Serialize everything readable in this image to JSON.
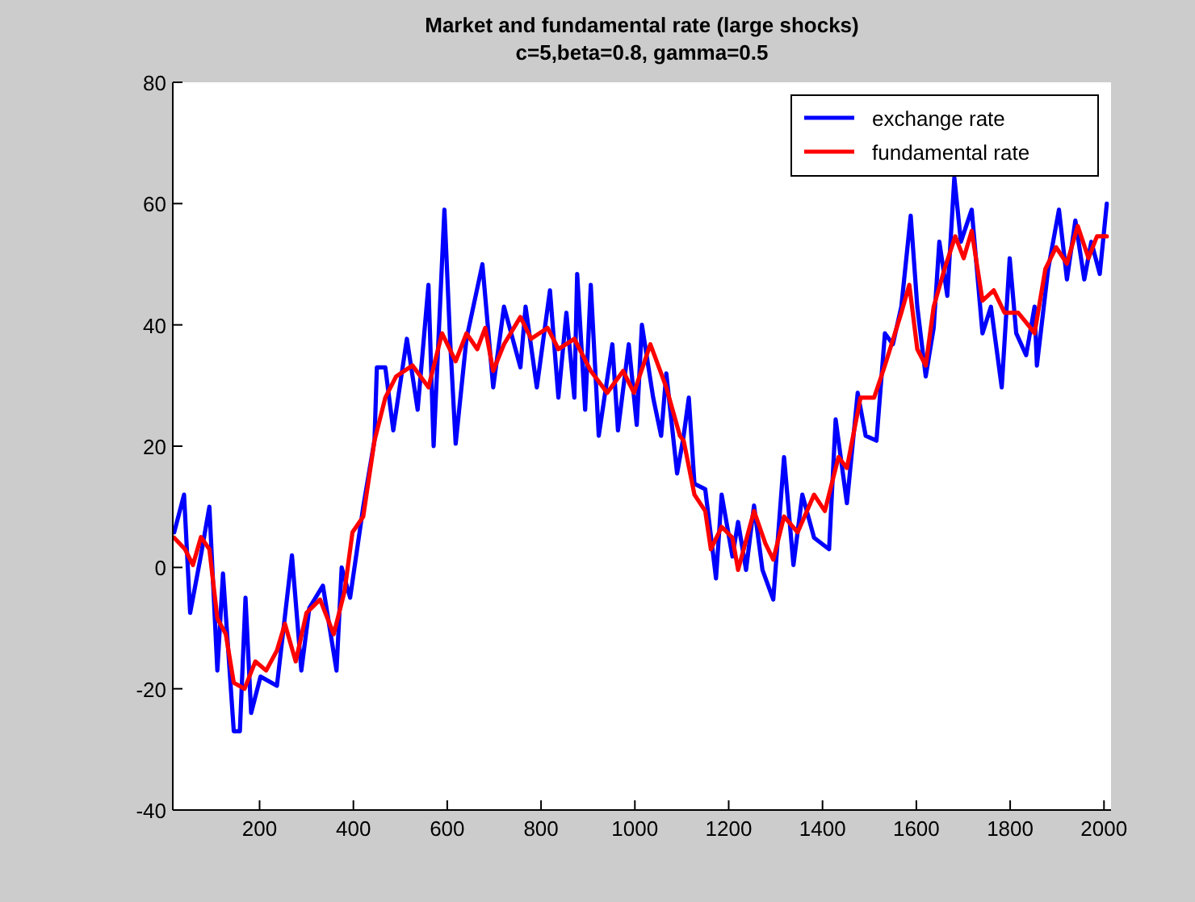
{
  "chart_data": {
    "type": "line",
    "title": "Market and fundamental rate (large shocks)",
    "subtitle": "c=5,beta=0.8, gamma=0.5",
    "xlim": [
      15,
      2015
    ],
    "ylim": [
      -40,
      80
    ],
    "xticks": [
      200,
      400,
      600,
      800,
      1000,
      1200,
      1400,
      1600,
      1800,
      2000
    ],
    "yticks": [
      -40,
      -20,
      0,
      20,
      40,
      60,
      80
    ],
    "legend": "top right",
    "grid": false,
    "series": [
      {
        "name": "exchange rate",
        "color": "#0000ff",
        "x": [
          18,
          39,
          52,
          75,
          93,
          110,
          122,
          145,
          158,
          170,
          182,
          202,
          237,
          269,
          289,
          306,
          335,
          364,
          375,
          393,
          421,
          445,
          450,
          468,
          485,
          514,
          537,
          560,
          571,
          594,
          606,
          618,
          641,
          675,
          698,
          721,
          756,
          767,
          791,
          819,
          837,
          854,
          871,
          877,
          894,
          906,
          923,
          952,
          964,
          987,
          1004,
          1015,
          1039,
          1056,
          1067,
          1090,
          1104,
          1115,
          1127,
          1150,
          1173,
          1185,
          1208,
          1220,
          1237,
          1254,
          1272,
          1295,
          1318,
          1338,
          1357,
          1382,
          1414,
          1428,
          1452,
          1475,
          1492,
          1515,
          1533,
          1550,
          1568,
          1588,
          1602,
          1620,
          1637,
          1649,
          1666,
          1681,
          1695,
          1718,
          1741,
          1759,
          1782,
          1799,
          1813,
          1834,
          1852,
          1857,
          1881,
          1904,
          1921,
          1939,
          1958,
          1973,
          1991,
          2006
        ],
        "values": [
          5.8,
          12,
          -7.5,
          2,
          10,
          -17,
          -1,
          -27,
          -27,
          -5,
          -24,
          -18,
          -19.5,
          2,
          -17,
          -6.7,
          -3,
          -17,
          0,
          -5,
          10,
          21,
          33,
          33,
          22.6,
          37.7,
          26,
          46.6,
          20,
          59,
          37.7,
          20.4,
          37.7,
          50,
          29.7,
          43,
          33,
          43,
          29.7,
          45.7,
          28,
          42,
          28,
          48.4,
          26,
          46.6,
          21.7,
          36.8,
          22.6,
          36.8,
          23.5,
          40,
          28,
          21.7,
          32,
          15.5,
          21.7,
          28,
          13.8,
          12.9,
          -1.8,
          12,
          1.8,
          7.5,
          -0.4,
          10.2,
          -0.4,
          -5.3,
          18.2,
          0.4,
          12,
          4.9,
          3,
          24.4,
          10.6,
          28.8,
          21.7,
          20.9,
          38.6,
          36.8,
          43,
          58,
          43,
          31.5,
          39.5,
          53.7,
          44.8,
          64.3,
          53.7,
          59,
          38.6,
          43,
          29.7,
          51,
          38.6,
          35,
          43,
          33.3,
          49.2,
          59,
          47.5,
          57.2,
          47.5,
          53.7,
          48.4,
          60
        ]
      },
      {
        "name": "fundamental rate",
        "color": "#ff0000",
        "x": [
          18,
          41,
          58,
          75,
          93,
          110,
          128,
          145,
          168,
          191,
          214,
          237,
          254,
          277,
          300,
          329,
          358,
          381,
          398,
          421,
          445,
          468,
          491,
          526,
          560,
          589,
          618,
          641,
          664,
          681,
          698,
          721,
          756,
          779,
          814,
          837,
          871,
          906,
          941,
          975,
          998,
          1033,
          1067,
          1096,
          1104,
          1127,
          1150,
          1162,
          1185,
          1208,
          1220,
          1254,
          1278,
          1295,
          1318,
          1347,
          1382,
          1405,
          1434,
          1452,
          1481,
          1510,
          1533,
          1568,
          1585,
          1602,
          1620,
          1637,
          1660,
          1683,
          1701,
          1718,
          1741,
          1765,
          1788,
          1817,
          1834,
          1852,
          1875,
          1898,
          1921,
          1944,
          1967,
          1985,
          2006
        ],
        "values": [
          4.9,
          3,
          0.4,
          5,
          3,
          -8.4,
          -11,
          -19,
          -20,
          -15.5,
          -17,
          -13.7,
          -9.3,
          -15.5,
          -7.5,
          -5.3,
          -11,
          -4,
          5.8,
          8.4,
          20.9,
          28,
          31.5,
          33.3,
          29.7,
          38.6,
          34,
          38.6,
          36,
          39.5,
          32.4,
          36.8,
          41.3,
          37.7,
          39.5,
          36,
          37.7,
          32.4,
          28.8,
          32.4,
          28.8,
          36.8,
          29.7,
          21.7,
          20.9,
          12,
          9.3,
          3,
          6.7,
          4.9,
          -0.4,
          9.3,
          4,
          1.3,
          8.4,
          5.8,
          12,
          9.3,
          18.2,
          16.4,
          28,
          28,
          33.3,
          42,
          46.6,
          36,
          33.3,
          43,
          49.2,
          54.6,
          51,
          55.5,
          44,
          45.7,
          42,
          42,
          40.4,
          38.6,
          49.2,
          52.8,
          50.1,
          56.3,
          51,
          54.6,
          54.6
        ]
      }
    ]
  }
}
